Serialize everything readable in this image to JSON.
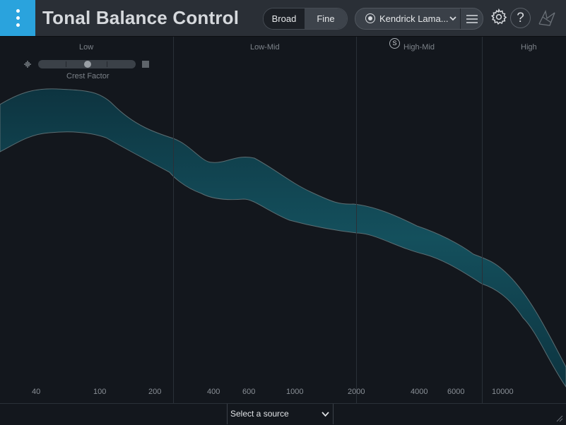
{
  "header": {
    "title": "Tonal Balance Control",
    "view_modes": [
      "Broad",
      "Fine"
    ],
    "active_view_mode": "Fine",
    "preset_name": "Kendrick Lama...",
    "icons": [
      "menu-dots-icon",
      "target-icon",
      "chevron-down-icon",
      "hamburger-menu-icon",
      "gear-icon",
      "help-icon",
      "izotope-logo-icon"
    ],
    "help_label": "?"
  },
  "bands": {
    "labels": [
      "Low",
      "Low-Mid",
      "High-Mid",
      "High"
    ],
    "solo_label": "S"
  },
  "crest_factor": {
    "label": "Crest Factor"
  },
  "frequency_axis": {
    "ticks": [
      "40",
      "100",
      "200",
      "400",
      "600",
      "1000",
      "2000",
      "4000",
      "6000",
      "10000"
    ]
  },
  "footer": {
    "source_select": "Select a source"
  },
  "colors": {
    "accent": "#2aa3dd",
    "band_fill": "#0e3b47",
    "band_core": "#134b58",
    "band_edge": "#5f7378",
    "background": "#13171d"
  }
}
